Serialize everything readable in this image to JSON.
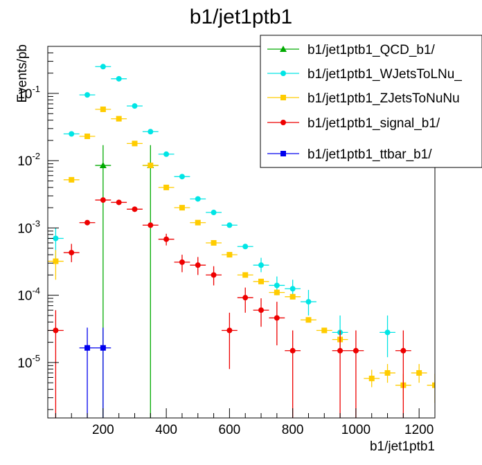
{
  "chart_data": {
    "type": "scatter",
    "title": "b1/jet1ptb1",
    "xlabel": "b1/jet1ptb1",
    "ylabel": "Events/pb",
    "xlim": [
      25,
      1250
    ],
    "ylim": [
      1.5e-06,
      0.5
    ],
    "yscale": "log",
    "x_ticks": [
      200,
      400,
      600,
      800,
      1000,
      1200
    ],
    "y_ticks": [
      {
        "v": 1e-05,
        "exp": "-5"
      },
      {
        "v": 0.0001,
        "exp": "-4"
      },
      {
        "v": 0.001,
        "exp": "-3"
      },
      {
        "v": 0.01,
        "exp": "-2"
      },
      {
        "v": 0.1,
        "exp": "-1"
      }
    ],
    "bin_half_width": 25,
    "legend_position": "top-right",
    "series": [
      {
        "name": "b1/jet1ptb1_QCD_b1/",
        "color": "#00aa00",
        "marker": "triangle",
        "points": [
          {
            "x": 200,
            "y": 0.0085,
            "lo": 1.5e-06,
            "hi": 0.017
          },
          {
            "x": 350,
            "y": 0.0085,
            "lo": 1.5e-06,
            "hi": 0.017
          }
        ]
      },
      {
        "name": "b1/jet1ptb1_WJetsToLNu_",
        "color": "#00e5e5",
        "marker": "circle",
        "points": [
          {
            "x": 50,
            "y": 0.0007,
            "lo": 0.00035,
            "hi": 0.001
          },
          {
            "x": 100,
            "y": 0.025
          },
          {
            "x": 150,
            "y": 0.095
          },
          {
            "x": 200,
            "y": 0.25
          },
          {
            "x": 250,
            "y": 0.165
          },
          {
            "x": 300,
            "y": 0.065
          },
          {
            "x": 350,
            "y": 0.027
          },
          {
            "x": 400,
            "y": 0.0125
          },
          {
            "x": 450,
            "y": 0.0058
          },
          {
            "x": 500,
            "y": 0.0027
          },
          {
            "x": 550,
            "y": 0.0017
          },
          {
            "x": 600,
            "y": 0.0011
          },
          {
            "x": 650,
            "y": 0.00053
          },
          {
            "x": 700,
            "y": 0.00028,
            "lo": 0.00022,
            "hi": 0.00036
          },
          {
            "x": 750,
            "y": 0.00014,
            "lo": 0.0001,
            "hi": 0.00019
          },
          {
            "x": 800,
            "y": 0.000125,
            "lo": 9e-05,
            "hi": 0.00017
          },
          {
            "x": 850,
            "y": 8e-05,
            "lo": 5e-05,
            "hi": 0.00012
          },
          {
            "x": 950,
            "y": 2.8e-05,
            "lo": 1.7e-05,
            "hi": 5e-05
          },
          {
            "x": 1100,
            "y": 2.8e-05,
            "lo": 1.2e-05,
            "hi": 5e-05
          }
        ]
      },
      {
        "name": "b1/jet1ptb1_ZJetsToNuNu",
        "color": "#ffcc00",
        "marker": "square",
        "points": [
          {
            "x": 50,
            "y": 0.00032,
            "lo": 0.00017,
            "hi": 0.00047
          },
          {
            "x": 100,
            "y": 0.0052
          },
          {
            "x": 150,
            "y": 0.023
          },
          {
            "x": 200,
            "y": 0.058
          },
          {
            "x": 250,
            "y": 0.042
          },
          {
            "x": 300,
            "y": 0.018
          },
          {
            "x": 350,
            "y": 0.0085
          },
          {
            "x": 400,
            "y": 0.004
          },
          {
            "x": 450,
            "y": 0.002
          },
          {
            "x": 500,
            "y": 0.0012
          },
          {
            "x": 550,
            "y": 0.0006
          },
          {
            "x": 600,
            "y": 0.0004
          },
          {
            "x": 650,
            "y": 0.0002
          },
          {
            "x": 700,
            "y": 0.00016
          },
          {
            "x": 750,
            "y": 0.00011
          },
          {
            "x": 800,
            "y": 9.5e-05
          },
          {
            "x": 850,
            "y": 4.3e-05
          },
          {
            "x": 900,
            "y": 3e-05
          },
          {
            "x": 950,
            "y": 2.2e-05,
            "lo": 1.5e-05,
            "hi": 3e-05
          },
          {
            "x": 1050,
            "y": 5.8e-06,
            "lo": 4.3e-06,
            "hi": 7.8e-06
          },
          {
            "x": 1100,
            "y": 7e-06,
            "lo": 5e-06,
            "hi": 9.5e-06
          },
          {
            "x": 1150,
            "y": 4.6e-06,
            "lo": 2.8e-06,
            "hi": 6.8e-06
          },
          {
            "x": 1200,
            "y": 7e-06,
            "lo": 5e-06,
            "hi": 9.5e-06
          },
          {
            "x": 1250,
            "y": 4.6e-06,
            "lo": 2.5e-06,
            "hi": 6.8e-06
          }
        ]
      },
      {
        "name": "b1/jet1ptb1_signal_b1/",
        "color": "#ee0000",
        "marker": "circle",
        "points": [
          {
            "x": 50,
            "y": 3e-05,
            "lo": 1.5e-06,
            "hi": 6e-05
          },
          {
            "x": 100,
            "y": 0.00043,
            "lo": 0.00031,
            "hi": 0.00058
          },
          {
            "x": 150,
            "y": 0.0012
          },
          {
            "x": 200,
            "y": 0.0026
          },
          {
            "x": 250,
            "y": 0.0024
          },
          {
            "x": 300,
            "y": 0.0019
          },
          {
            "x": 350,
            "y": 0.0011
          },
          {
            "x": 400,
            "y": 0.00068,
            "lo": 0.00055,
            "hi": 0.00082
          },
          {
            "x": 450,
            "y": 0.00031,
            "lo": 0.00022,
            "hi": 0.0004
          },
          {
            "x": 500,
            "y": 0.00028,
            "lo": 0.0002,
            "hi": 0.00037
          },
          {
            "x": 550,
            "y": 0.0002,
            "lo": 0.00014,
            "hi": 0.00027
          },
          {
            "x": 600,
            "y": 3e-05,
            "lo": 8e-06,
            "hi": 5.5e-05
          },
          {
            "x": 650,
            "y": 9.2e-05,
            "lo": 5.5e-05,
            "hi": 0.00013
          },
          {
            "x": 700,
            "y": 6e-05,
            "lo": 3.4e-05,
            "hi": 9e-05
          },
          {
            "x": 750,
            "y": 4.6e-05,
            "lo": 1.8e-05,
            "hi": 8e-05
          },
          {
            "x": 800,
            "y": 1.5e-05,
            "lo": 1.5e-06,
            "hi": 3e-05
          },
          {
            "x": 950,
            "y": 1.5e-05,
            "lo": 1.5e-06,
            "hi": 3e-05
          },
          {
            "x": 1000,
            "y": 1.5e-05,
            "lo": 1.5e-06,
            "hi": 3e-05
          },
          {
            "x": 1150,
            "y": 1.5e-05,
            "lo": 1.5e-06,
            "hi": 3e-05
          }
        ]
      },
      {
        "name": "b1/jet1ptb1_ttbar_b1/",
        "color": "#0000ee",
        "marker": "square",
        "points": [
          {
            "x": 150,
            "y": 1.65e-05,
            "lo": 1.5e-06,
            "hi": 3.3e-05
          },
          {
            "x": 200,
            "y": 1.65e-05,
            "lo": 1.5e-06,
            "hi": 3.3e-05
          }
        ]
      }
    ]
  }
}
